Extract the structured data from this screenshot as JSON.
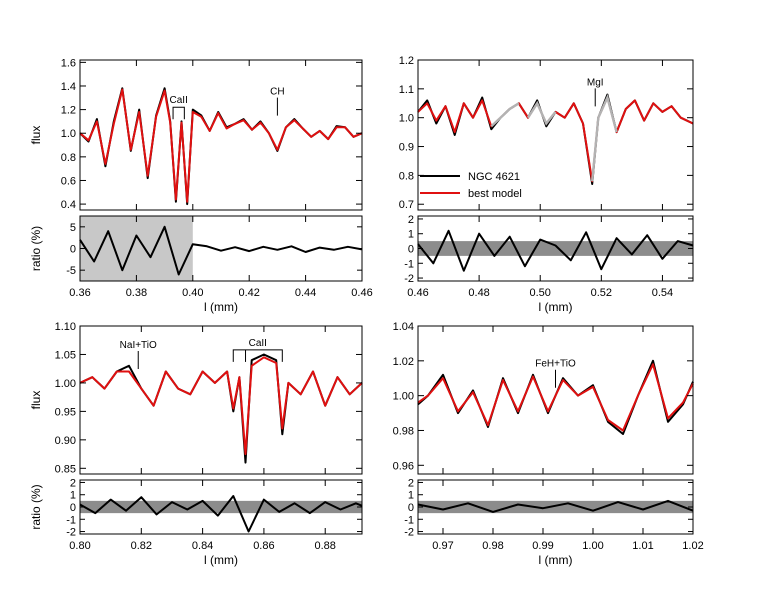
{
  "colors": {
    "observed": "#000000",
    "model": "#e01010",
    "masked": "#b3b3b3",
    "shade_light": "#c8c8c8",
    "shade_dark": "#8c8c8c"
  },
  "legend": [
    {
      "label": "NGC 4621",
      "color": "#000000"
    },
    {
      "label": "best model",
      "color": "#e01010"
    }
  ],
  "chart_data": [
    {
      "type": "line",
      "panel": "top-left",
      "xlabel": "l (mm)",
      "ylabel_flux": "flux",
      "ylabel_ratio": "ratio (%)",
      "xlim": [
        0.36,
        0.46
      ],
      "ylim_flux": [
        0.35,
        1.62
      ],
      "ylim_ratio": [
        -7.5,
        7.5
      ],
      "x_ticks": [
        0.36,
        0.38,
        0.4,
        0.42,
        0.44,
        0.46
      ],
      "x_tick_labels": [
        "0.36",
        "0.38",
        "0.40",
        "0.42",
        "0.44",
        "0.46"
      ],
      "flux_ticks": [
        0.4,
        0.6,
        0.8,
        1.0,
        1.2,
        1.4,
        1.6
      ],
      "flux_tick_labels": [
        "0.4",
        "0.6",
        "0.8",
        "1.0",
        "1.2",
        "1.4",
        "1.6"
      ],
      "ratio_ticks": [
        -5,
        0,
        5
      ],
      "ratio_tick_labels": [
        "-5",
        "0",
        "5"
      ],
      "ratio_shade": {
        "x": [
          0.36,
          0.4
        ],
        "y": [
          -7.5,
          7.5
        ],
        "style": "light"
      },
      "annotations": [
        {
          "text": "CaII",
          "type": "bracket",
          "x": [
            0.393,
            0.397
          ],
          "y": 1.22
        },
        {
          "text": "CH",
          "type": "tick",
          "x": [
            0.43
          ],
          "y": 1.2
        }
      ],
      "series": {
        "x": [
          0.36,
          0.363,
          0.366,
          0.369,
          0.372,
          0.375,
          0.378,
          0.381,
          0.384,
          0.387,
          0.39,
          0.392,
          0.394,
          0.396,
          0.398,
          0.4,
          0.403,
          0.406,
          0.409,
          0.412,
          0.415,
          0.418,
          0.421,
          0.424,
          0.427,
          0.43,
          0.433,
          0.436,
          0.439,
          0.442,
          0.445,
          0.448,
          0.451,
          0.454,
          0.457,
          0.46
        ],
        "observed": [
          1.0,
          0.93,
          1.12,
          0.72,
          1.1,
          1.38,
          0.85,
          1.2,
          0.62,
          1.15,
          1.38,
          1.1,
          0.42,
          1.1,
          0.4,
          1.2,
          1.15,
          1.02,
          1.18,
          1.05,
          1.08,
          1.12,
          1.03,
          1.1,
          1.0,
          0.85,
          1.05,
          1.12,
          1.04,
          0.97,
          1.02,
          0.95,
          1.06,
          1.05,
          0.97,
          1.0
        ],
        "model": [
          1.0,
          0.94,
          1.1,
          0.74,
          1.08,
          1.37,
          0.86,
          1.18,
          0.64,
          1.14,
          1.36,
          1.09,
          0.44,
          1.09,
          0.42,
          1.18,
          1.14,
          1.02,
          1.17,
          1.04,
          1.08,
          1.11,
          1.03,
          1.09,
          1.0,
          0.86,
          1.05,
          1.11,
          1.04,
          0.97,
          1.02,
          0.95,
          1.05,
          1.05,
          0.97,
          1.0
        ],
        "ratio_x": [
          0.36,
          0.365,
          0.37,
          0.375,
          0.38,
          0.385,
          0.39,
          0.395,
          0.4,
          0.405,
          0.41,
          0.415,
          0.42,
          0.425,
          0.43,
          0.435,
          0.44,
          0.445,
          0.45,
          0.455,
          0.46
        ],
        "ratio": [
          2,
          -3,
          4,
          -5,
          3,
          -2,
          5,
          -6,
          1,
          0.5,
          -0.5,
          0.3,
          -0.6,
          0.4,
          -0.3,
          0.5,
          -0.8,
          0.2,
          -0.3,
          0.4,
          -0.2
        ]
      }
    },
    {
      "type": "line",
      "panel": "top-right",
      "xlabel": "l (mm)",
      "xlim": [
        0.46,
        0.55
      ],
      "ylim_flux": [
        0.68,
        1.2
      ],
      "ylim_ratio": [
        -2.2,
        2.2
      ],
      "x_ticks": [
        0.46,
        0.48,
        0.5,
        0.52,
        0.54
      ],
      "x_tick_labels": [
        "0.46",
        "0.48",
        "0.50",
        "0.52",
        "0.54"
      ],
      "flux_ticks": [
        0.7,
        0.8,
        0.9,
        1.0,
        1.1,
        1.2
      ],
      "flux_tick_labels": [
        "0.7",
        "0.8",
        "0.9",
        "1.0",
        "1.1",
        "1.2"
      ],
      "ratio_ticks": [
        -2,
        -1,
        0,
        1,
        2
      ],
      "ratio_tick_labels": [
        "-2",
        "-1",
        "0",
        "1",
        "2"
      ],
      "ratio_shade": {
        "x": [
          0.46,
          0.55
        ],
        "y": [
          -0.5,
          0.5
        ],
        "style": "dark"
      },
      "annotations": [
        {
          "text": "MgI",
          "type": "tick",
          "x": [
            0.518
          ],
          "y": 1.06
        }
      ],
      "masked": [
        [
          0.485,
          0.49
        ],
        [
          0.497,
          0.503
        ],
        [
          0.52,
          0.523
        ]
      ],
      "series": {
        "x": [
          0.46,
          0.463,
          0.466,
          0.469,
          0.472,
          0.475,
          0.478,
          0.481,
          0.484,
          0.487,
          0.49,
          0.493,
          0.496,
          0.499,
          0.502,
          0.505,
          0.508,
          0.511,
          0.514,
          0.517,
          0.519,
          0.522,
          0.525,
          0.528,
          0.531,
          0.534,
          0.537,
          0.54,
          0.543,
          0.546,
          0.55
        ],
        "observed": [
          1.02,
          1.06,
          0.98,
          1.04,
          0.94,
          1.05,
          1.0,
          1.07,
          0.96,
          1.0,
          1.03,
          1.05,
          1.0,
          1.06,
          0.97,
          1.02,
          1.0,
          1.05,
          0.98,
          0.77,
          1.0,
          1.08,
          0.95,
          1.03,
          1.06,
          0.99,
          1.05,
          1.02,
          1.04,
          1.0,
          0.98
        ],
        "model": [
          1.02,
          1.05,
          0.99,
          1.04,
          0.95,
          1.05,
          1.0,
          1.06,
          0.97,
          1.0,
          1.03,
          1.05,
          1.0,
          1.05,
          0.98,
          1.02,
          1.0,
          1.05,
          0.98,
          0.78,
          1.0,
          1.07,
          0.95,
          1.03,
          1.06,
          0.99,
          1.05,
          1.02,
          1.04,
          1.0,
          0.98
        ],
        "ratio_x": [
          0.46,
          0.465,
          0.47,
          0.475,
          0.48,
          0.485,
          0.49,
          0.495,
          0.5,
          0.505,
          0.51,
          0.515,
          0.52,
          0.525,
          0.53,
          0.535,
          0.54,
          0.545,
          0.55
        ],
        "ratio": [
          0.3,
          -1.0,
          1.2,
          -1.5,
          1.0,
          -0.5,
          0.8,
          -1.2,
          0.6,
          0.2,
          -0.8,
          1.1,
          -1.4,
          0.7,
          -0.4,
          0.9,
          -0.7,
          0.5,
          0.2
        ]
      }
    },
    {
      "type": "line",
      "panel": "bottom-left",
      "xlabel": "l (mm)",
      "ylabel_flux": "flux",
      "ylabel_ratio": "ratio (%)",
      "xlim": [
        0.8,
        0.892
      ],
      "ylim_flux": [
        0.84,
        1.1
      ],
      "ylim_ratio": [
        -2.2,
        2.2
      ],
      "x_ticks": [
        0.8,
        0.82,
        0.84,
        0.86,
        0.88
      ],
      "x_tick_labels": [
        "0.80",
        "0.82",
        "0.84",
        "0.86",
        "0.88"
      ],
      "flux_ticks": [
        0.85,
        0.9,
        0.95,
        1.0,
        1.05,
        1.1
      ],
      "flux_tick_labels": [
        "0.85",
        "0.90",
        "0.95",
        "1.00",
        "1.05",
        "1.10"
      ],
      "ratio_ticks": [
        -2,
        -1,
        0,
        1,
        2
      ],
      "ratio_tick_labels": [
        "-2",
        "-1",
        "0",
        "1",
        "2"
      ],
      "ratio_shade": {
        "x": [
          0.8,
          0.892
        ],
        "y": [
          -0.5,
          0.5
        ],
        "style": "dark"
      },
      "annotations": [
        {
          "text": "NaI+TiO",
          "type": "tick",
          "x": [
            0.819
          ],
          "y": 1.035
        },
        {
          "text": "CaII",
          "type": "bracket3",
          "x": [
            0.85,
            0.854,
            0.866
          ],
          "y": 1.058
        }
      ],
      "series": {
        "x": [
          0.8,
          0.804,
          0.808,
          0.812,
          0.816,
          0.82,
          0.824,
          0.828,
          0.832,
          0.836,
          0.84,
          0.844,
          0.848,
          0.85,
          0.852,
          0.854,
          0.856,
          0.86,
          0.864,
          0.866,
          0.868,
          0.872,
          0.876,
          0.88,
          0.884,
          0.888,
          0.892
        ],
        "observed": [
          1.0,
          1.01,
          0.99,
          1.02,
          1.03,
          0.99,
          0.96,
          1.02,
          0.99,
          0.98,
          1.02,
          1.0,
          1.02,
          0.95,
          1.01,
          0.86,
          1.04,
          1.05,
          1.04,
          0.91,
          1.0,
          0.98,
          1.02,
          0.96,
          1.01,
          0.98,
          1.0
        ],
        "model": [
          1.0,
          1.01,
          0.99,
          1.02,
          1.02,
          0.99,
          0.96,
          1.02,
          0.99,
          0.98,
          1.02,
          1.0,
          1.02,
          0.955,
          1.01,
          0.875,
          1.03,
          1.045,
          1.035,
          0.92,
          1.0,
          0.98,
          1.02,
          0.96,
          1.01,
          0.98,
          1.0
        ],
        "ratio_x": [
          0.8,
          0.805,
          0.81,
          0.815,
          0.82,
          0.825,
          0.83,
          0.835,
          0.84,
          0.845,
          0.85,
          0.855,
          0.86,
          0.865,
          0.87,
          0.875,
          0.88,
          0.885,
          0.89,
          0.892
        ],
        "ratio": [
          0.2,
          -0.5,
          0.6,
          -0.3,
          0.8,
          -0.6,
          0.4,
          -0.2,
          0.5,
          -0.7,
          0.9,
          -2.0,
          0.6,
          -0.4,
          0.3,
          -0.5,
          0.4,
          -0.2,
          0.3,
          0.1
        ]
      }
    },
    {
      "type": "line",
      "panel": "bottom-right",
      "xlabel": "l (mm)",
      "xlim": [
        0.965,
        1.02
      ],
      "ylim_flux": [
        0.955,
        1.04
      ],
      "ylim_ratio": [
        -2.2,
        2.2
      ],
      "x_ticks": [
        0.97,
        0.98,
        0.99,
        1.0,
        1.01,
        1.02
      ],
      "x_tick_labels": [
        "0.97",
        "0.98",
        "0.99",
        "1.00",
        "1.01",
        "1.02"
      ],
      "flux_ticks": [
        0.96,
        0.98,
        1.0,
        1.02,
        1.04
      ],
      "flux_tick_labels": [
        "0.96",
        "0.98",
        "1.00",
        "1.02",
        "1.04"
      ],
      "ratio_ticks": [
        -2,
        -1,
        0,
        1,
        2
      ],
      "ratio_tick_labels": [
        "-2",
        "-1",
        "0",
        "1",
        "2"
      ],
      "ratio_shade": {
        "x": [
          0.965,
          1.02
        ],
        "y": [
          -0.5,
          0.5
        ],
        "style": "dark"
      },
      "annotations": [
        {
          "text": "FeH+TiO",
          "type": "tick",
          "x": [
            0.9925
          ],
          "y": 1.008
        }
      ],
      "series": {
        "x": [
          0.965,
          0.967,
          0.97,
          0.973,
          0.976,
          0.979,
          0.982,
          0.985,
          0.988,
          0.991,
          0.994,
          0.997,
          1.0,
          1.003,
          1.006,
          1.009,
          1.012,
          1.015,
          1.018,
          1.02
        ],
        "observed": [
          0.995,
          1.0,
          1.012,
          0.99,
          1.003,
          0.982,
          1.01,
          0.99,
          1.012,
          0.99,
          1.01,
          1.0,
          1.006,
          0.985,
          0.978,
          1.0,
          1.02,
          0.985,
          0.995,
          1.008
        ],
        "model": [
          0.996,
          1.0,
          1.01,
          0.991,
          1.002,
          0.983,
          1.009,
          0.991,
          1.011,
          0.991,
          1.009,
          1.0,
          1.005,
          0.986,
          0.98,
          1.0,
          1.018,
          0.987,
          0.996,
          1.007
        ],
        "ratio_x": [
          0.965,
          0.97,
          0.975,
          0.98,
          0.985,
          0.99,
          0.995,
          1.0,
          1.005,
          1.01,
          1.015,
          1.02
        ],
        "ratio": [
          0.2,
          -0.2,
          0.3,
          -0.4,
          0.2,
          -0.1,
          0.3,
          -0.3,
          0.4,
          -0.2,
          0.5,
          -0.3
        ]
      }
    }
  ]
}
